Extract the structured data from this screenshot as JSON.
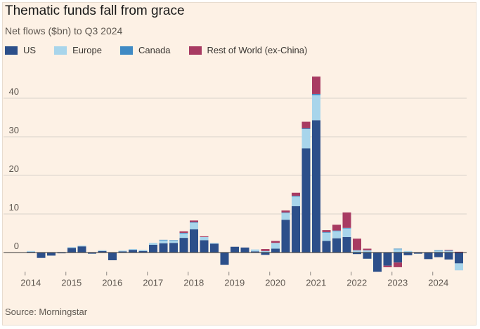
{
  "chart_data": {
    "type": "bar",
    "stacked": true,
    "title": "Thematic funds fall from grace",
    "subtitle": "Net flows ($bn) to Q3 2024",
    "source": "Source: Morningstar",
    "xlabel": "",
    "ylabel": "",
    "ylim": [
      -5,
      47
    ],
    "y_ticks": [
      0,
      10,
      20,
      30,
      40
    ],
    "x_tick_labels": [
      "2014",
      "2015",
      "2016",
      "2017",
      "2018",
      "2019",
      "2020",
      "2021",
      "2022",
      "2023",
      "2024"
    ],
    "legend_position": "top-left",
    "categories": [
      "2014 Q1",
      "2014 Q2",
      "2014 Q3",
      "2014 Q4",
      "2015 Q1",
      "2015 Q2",
      "2015 Q3",
      "2015 Q4",
      "2016 Q1",
      "2016 Q2",
      "2016 Q3",
      "2016 Q4",
      "2017 Q1",
      "2017 Q2",
      "2017 Q3",
      "2017 Q4",
      "2018 Q1",
      "2018 Q2",
      "2018 Q3",
      "2018 Q4",
      "2019 Q1",
      "2019 Q2",
      "2019 Q3",
      "2019 Q4",
      "2020 Q1",
      "2020 Q2",
      "2020 Q3",
      "2020 Q4",
      "2021 Q1",
      "2021 Q2",
      "2021 Q3",
      "2021 Q4",
      "2022 Q1",
      "2022 Q2",
      "2022 Q3",
      "2022 Q4",
      "2023 Q1",
      "2023 Q2",
      "2023 Q3",
      "2023 Q4",
      "2024 Q1",
      "2024 Q2",
      "2024 Q3"
    ],
    "series": [
      {
        "name": "US",
        "color": "#2c4f8a",
        "values": [
          0.2,
          -1.4,
          -0.8,
          -0.2,
          1.2,
          1.6,
          -0.3,
          0.4,
          -2.0,
          0.3,
          0.7,
          0.4,
          2.0,
          2.4,
          2.5,
          3.8,
          6.0,
          3.2,
          2.3,
          -3.2,
          1.5,
          1.3,
          0.3,
          -0.6,
          1.0,
          8.5,
          12.0,
          27.0,
          34.3,
          3.0,
          3.7,
          4.0,
          -0.4,
          -1.6,
          -5.0,
          -3.4,
          -2.6,
          -0.7,
          -0.3,
          -1.7,
          -1.2,
          -1.8,
          -2.8
        ]
      },
      {
        "name": "Europe",
        "color": "#a8d5eb",
        "values": [
          0.2,
          0.0,
          0.0,
          0.0,
          0.2,
          0.2,
          0.0,
          0.2,
          0.0,
          0.2,
          0.2,
          0.3,
          0.5,
          0.8,
          0.6,
          1.2,
          1.8,
          0.8,
          0.2,
          0.0,
          0.0,
          0.0,
          0.5,
          0.4,
          1.5,
          1.8,
          2.5,
          5.0,
          6.5,
          2.2,
          1.9,
          2.3,
          0.6,
          0.6,
          0.0,
          0.0,
          0.9,
          0.4,
          0.0,
          0.0,
          0.5,
          0.5,
          -1.8
        ]
      },
      {
        "name": "Canada",
        "color": "#3f8ac4",
        "values": [
          0.0,
          0.0,
          0.0,
          0.0,
          0.0,
          0.0,
          0.0,
          0.0,
          0.0,
          0.0,
          0.0,
          0.0,
          0.0,
          0.1,
          0.1,
          0.1,
          0.1,
          0.0,
          0.0,
          0.0,
          0.0,
          0.0,
          0.0,
          0.0,
          0.0,
          0.1,
          0.2,
          0.2,
          0.3,
          0.1,
          0.1,
          0.1,
          0.0,
          0.0,
          0.0,
          0.0,
          0.1,
          0.0,
          0.0,
          0.0,
          0.1,
          0.1,
          0.0
        ]
      },
      {
        "name": "Rest of World (ex-China)",
        "color": "#a83b62",
        "values": [
          0.0,
          0.0,
          0.0,
          0.0,
          0.0,
          0.0,
          0.0,
          0.0,
          0.0,
          0.0,
          0.0,
          0.0,
          0.0,
          0.0,
          0.0,
          0.4,
          0.4,
          0.2,
          0.0,
          0.0,
          0.0,
          0.0,
          0.0,
          0.5,
          0.5,
          0.5,
          0.8,
          1.7,
          4.5,
          0.5,
          1.5,
          4.0,
          3.0,
          0.4,
          0.0,
          -0.4,
          -1.2,
          0.0,
          0.0,
          0.0,
          0.0,
          0.1,
          0.2
        ]
      }
    ]
  }
}
